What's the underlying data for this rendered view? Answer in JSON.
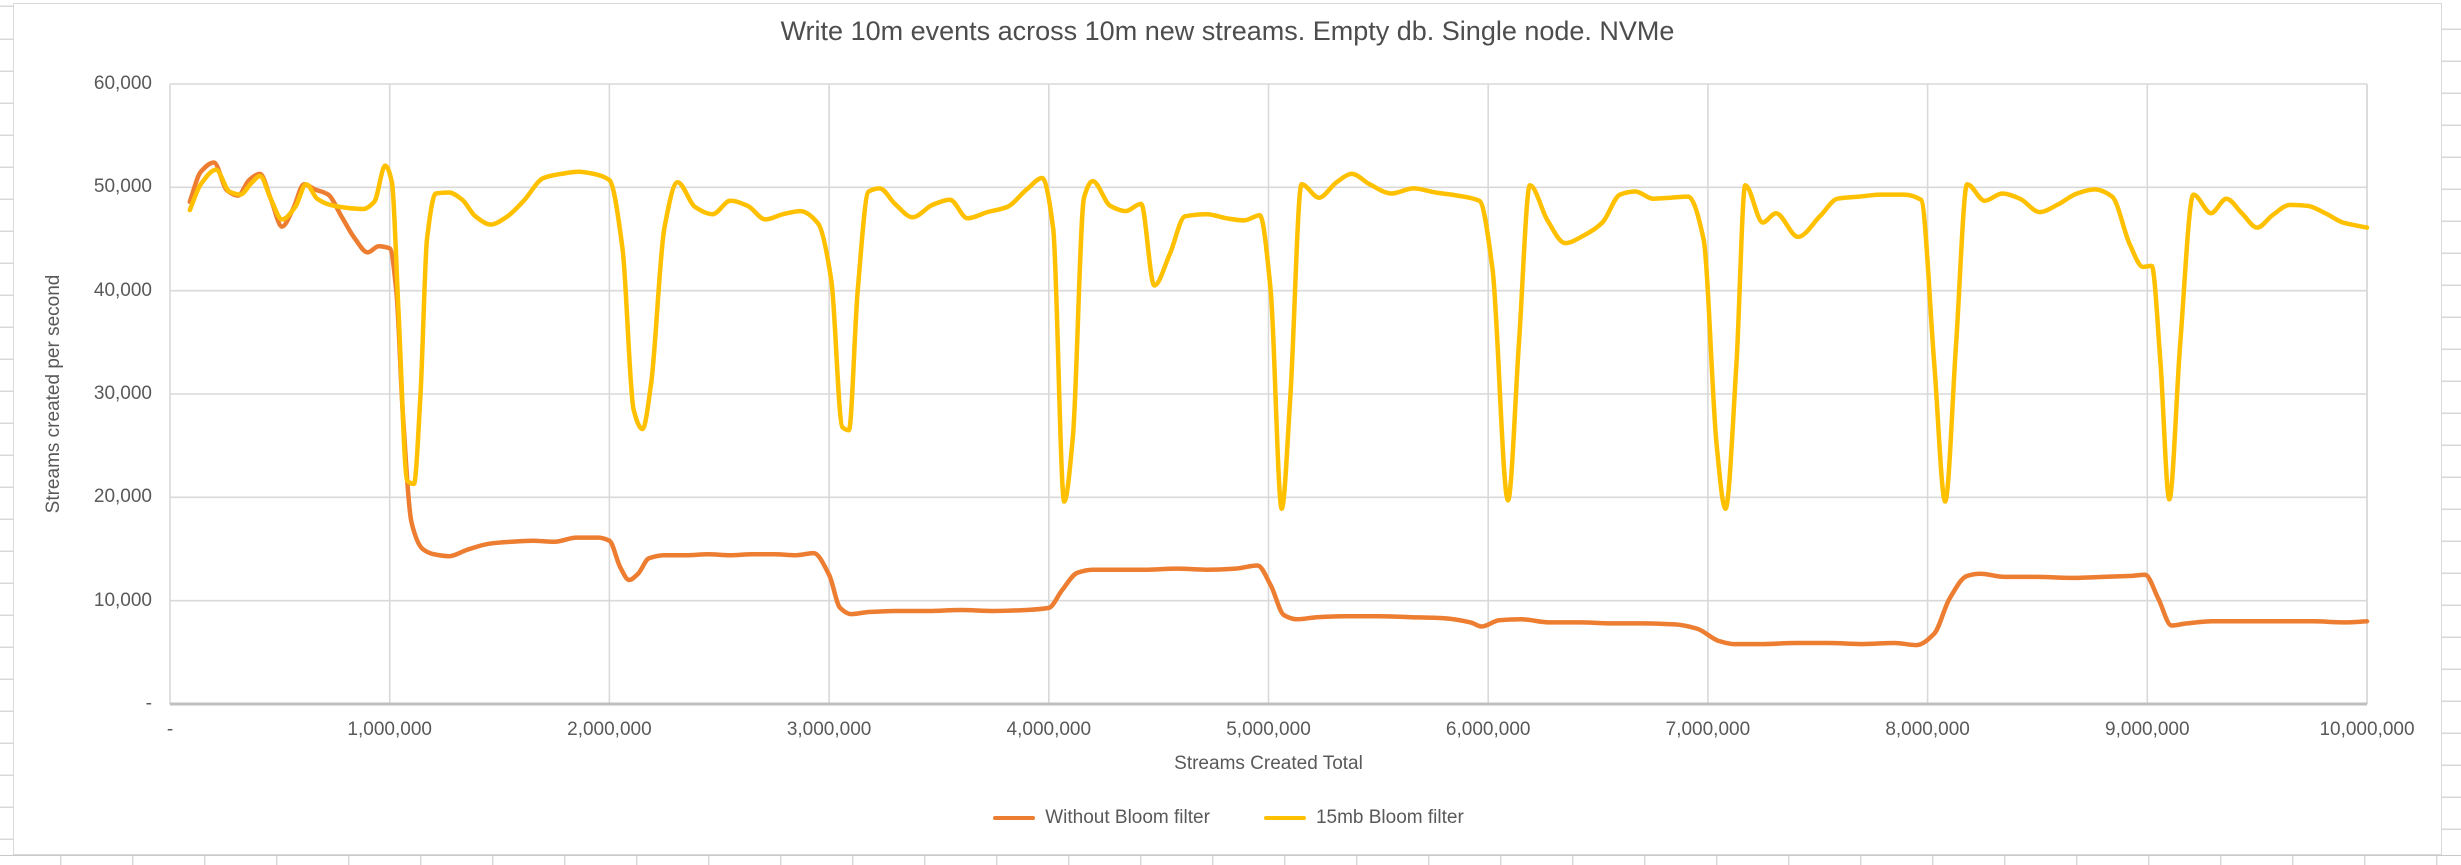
{
  "spreadsheet": {
    "gridline_color": "#d8d8d8",
    "visible_cells_text": ""
  },
  "chart_style": {
    "background": "#ffffff",
    "chart_border_color": "#d9d9d9",
    "gridline_color": "#d9d9d9",
    "axis_line_color": "#bfbfbf",
    "text_color": "#595959",
    "title_color": "#4d4d4d"
  },
  "chart_data": {
    "type": "line",
    "title": "Write 10m events across 10m new streams. Empty db. Single node. NVMe",
    "xlabel": "Streams Created Total",
    "ylabel": "Streams created per second",
    "xlim": [
      0,
      10000000
    ],
    "ylim": [
      0,
      60000
    ],
    "grid": true,
    "legend_position": "bottom",
    "x_unit_of_points": "millions of streams",
    "x_ticks": [
      {
        "label": "-",
        "value": 0
      },
      {
        "label": "1,000,000",
        "value": 1000000
      },
      {
        "label": "2,000,000",
        "value": 2000000
      },
      {
        "label": "3,000,000",
        "value": 3000000
      },
      {
        "label": "4,000,000",
        "value": 4000000
      },
      {
        "label": "5,000,000",
        "value": 5000000
      },
      {
        "label": "6,000,000",
        "value": 6000000
      },
      {
        "label": "7,000,000",
        "value": 7000000
      },
      {
        "label": "8,000,000",
        "value": 8000000
      },
      {
        "label": "9,000,000",
        "value": 9000000
      },
      {
        "label": "10,000,000",
        "value": 10000000
      }
    ],
    "y_ticks": [
      {
        "label": "-",
        "value": 0
      },
      {
        "label": "10,000",
        "value": 10000
      },
      {
        "label": "20,000",
        "value": 20000
      },
      {
        "label": "30,000",
        "value": 30000
      },
      {
        "label": "40,000",
        "value": 40000
      },
      {
        "label": "50,000",
        "value": 50000
      },
      {
        "label": "60,000",
        "value": 60000
      }
    ],
    "series": [
      {
        "name": "Without Bloom filter",
        "color": "#ED7D31",
        "points": [
          [
            0.09,
            48600
          ],
          [
            0.14,
            51500
          ],
          [
            0.2,
            52400
          ],
          [
            0.26,
            49700
          ],
          [
            0.31,
            49200
          ],
          [
            0.36,
            50700
          ],
          [
            0.41,
            51300
          ],
          [
            0.46,
            48800
          ],
          [
            0.51,
            46200
          ],
          [
            0.56,
            47900
          ],
          [
            0.61,
            50300
          ],
          [
            0.66,
            49800
          ],
          [
            0.72,
            49300
          ],
          [
            0.78,
            47200
          ],
          [
            0.84,
            45100
          ],
          [
            0.9,
            43700
          ],
          [
            0.95,
            44300
          ],
          [
            1.0,
            44100
          ],
          [
            1.03,
            40000
          ],
          [
            1.06,
            28000
          ],
          [
            1.1,
            17500
          ],
          [
            1.15,
            15000
          ],
          [
            1.2,
            14500
          ],
          [
            1.27,
            14300
          ],
          [
            1.35,
            14900
          ],
          [
            1.45,
            15500
          ],
          [
            1.55,
            15700
          ],
          [
            1.65,
            15800
          ],
          [
            1.75,
            15700
          ],
          [
            1.85,
            16100
          ],
          [
            1.95,
            16100
          ],
          [
            2.0,
            15800
          ],
          [
            2.05,
            13200
          ],
          [
            2.09,
            12000
          ],
          [
            2.13,
            12600
          ],
          [
            2.18,
            14100
          ],
          [
            2.25,
            14400
          ],
          [
            2.35,
            14400
          ],
          [
            2.45,
            14500
          ],
          [
            2.55,
            14400
          ],
          [
            2.65,
            14500
          ],
          [
            2.75,
            14500
          ],
          [
            2.85,
            14400
          ],
          [
            2.93,
            14600
          ],
          [
            3.0,
            12500
          ],
          [
            3.05,
            9300
          ],
          [
            3.1,
            8700
          ],
          [
            3.18,
            8900
          ],
          [
            3.3,
            9000
          ],
          [
            3.45,
            9000
          ],
          [
            3.6,
            9100
          ],
          [
            3.75,
            9000
          ],
          [
            3.9,
            9100
          ],
          [
            4.0,
            9300
          ],
          [
            4.06,
            11000
          ],
          [
            4.13,
            12700
          ],
          [
            4.2,
            13000
          ],
          [
            4.32,
            13000
          ],
          [
            4.45,
            13000
          ],
          [
            4.58,
            13100
          ],
          [
            4.72,
            13000
          ],
          [
            4.85,
            13100
          ],
          [
            4.95,
            13400
          ],
          [
            5.01,
            11500
          ],
          [
            5.07,
            8600
          ],
          [
            5.13,
            8200
          ],
          [
            5.22,
            8400
          ],
          [
            5.35,
            8500
          ],
          [
            5.5,
            8500
          ],
          [
            5.65,
            8400
          ],
          [
            5.8,
            8300
          ],
          [
            5.92,
            7900
          ],
          [
            5.97,
            7500
          ],
          [
            6.05,
            8100
          ],
          [
            6.15,
            8200
          ],
          [
            6.28,
            7900
          ],
          [
            6.42,
            7900
          ],
          [
            6.56,
            7800
          ],
          [
            6.7,
            7800
          ],
          [
            6.85,
            7700
          ],
          [
            6.95,
            7300
          ],
          [
            7.05,
            6100
          ],
          [
            7.12,
            5800
          ],
          [
            7.25,
            5800
          ],
          [
            7.4,
            5900
          ],
          [
            7.55,
            5900
          ],
          [
            7.7,
            5800
          ],
          [
            7.85,
            5900
          ],
          [
            7.95,
            5700
          ],
          [
            8.03,
            6800
          ],
          [
            8.1,
            10200
          ],
          [
            8.18,
            12400
          ],
          [
            8.24,
            12600
          ],
          [
            8.35,
            12300
          ],
          [
            8.5,
            12300
          ],
          [
            8.65,
            12200
          ],
          [
            8.8,
            12300
          ],
          [
            8.93,
            12400
          ],
          [
            8.99,
            12500
          ],
          [
            9.05,
            10200
          ],
          [
            9.11,
            7600
          ],
          [
            9.18,
            7800
          ],
          [
            9.3,
            8000
          ],
          [
            9.45,
            8000
          ],
          [
            9.6,
            8000
          ],
          [
            9.75,
            8000
          ],
          [
            9.9,
            7900
          ],
          [
            10.0,
            8000
          ]
        ]
      },
      {
        "name": "15mb Bloom filter",
        "color": "#FFC000",
        "points": [
          [
            0.09,
            47800
          ],
          [
            0.14,
            50300
          ],
          [
            0.21,
            51700
          ],
          [
            0.27,
            49600
          ],
          [
            0.32,
            49300
          ],
          [
            0.37,
            50400
          ],
          [
            0.41,
            51100
          ],
          [
            0.46,
            48800
          ],
          [
            0.51,
            46900
          ],
          [
            0.57,
            48100
          ],
          [
            0.62,
            50300
          ],
          [
            0.67,
            48900
          ],
          [
            0.73,
            48300
          ],
          [
            0.81,
            48000
          ],
          [
            0.88,
            47900
          ],
          [
            0.93,
            48600
          ],
          [
            0.98,
            52100
          ],
          [
            1.01,
            50500
          ],
          [
            1.04,
            38000
          ],
          [
            1.08,
            21600
          ],
          [
            1.11,
            21300
          ],
          [
            1.14,
            30000
          ],
          [
            1.17,
            45000
          ],
          [
            1.21,
            49400
          ],
          [
            1.27,
            49500
          ],
          [
            1.33,
            48800
          ],
          [
            1.39,
            47200
          ],
          [
            1.46,
            46400
          ],
          [
            1.53,
            47100
          ],
          [
            1.61,
            48700
          ],
          [
            1.7,
            50900
          ],
          [
            1.78,
            51300
          ],
          [
            1.86,
            51500
          ],
          [
            1.93,
            51300
          ],
          [
            2.0,
            50700
          ],
          [
            2.06,
            44000
          ],
          [
            2.11,
            28500
          ],
          [
            2.15,
            26600
          ],
          [
            2.19,
            31000
          ],
          [
            2.25,
            46000
          ],
          [
            2.31,
            50500
          ],
          [
            2.39,
            48100
          ],
          [
            2.47,
            47400
          ],
          [
            2.55,
            48700
          ],
          [
            2.63,
            48200
          ],
          [
            2.71,
            46900
          ],
          [
            2.79,
            47400
          ],
          [
            2.87,
            47700
          ],
          [
            2.95,
            46500
          ],
          [
            3.01,
            41000
          ],
          [
            3.06,
            26800
          ],
          [
            3.09,
            26500
          ],
          [
            3.13,
            40000
          ],
          [
            3.18,
            49600
          ],
          [
            3.23,
            49900
          ],
          [
            3.3,
            48400
          ],
          [
            3.38,
            47100
          ],
          [
            3.47,
            48300
          ],
          [
            3.55,
            48800
          ],
          [
            3.63,
            47000
          ],
          [
            3.72,
            47600
          ],
          [
            3.81,
            48100
          ],
          [
            3.9,
            49800
          ],
          [
            3.97,
            50900
          ],
          [
            4.02,
            46000
          ],
          [
            4.07,
            19600
          ],
          [
            4.11,
            26000
          ],
          [
            4.16,
            49000
          ],
          [
            4.2,
            50600
          ],
          [
            4.28,
            48200
          ],
          [
            4.35,
            47700
          ],
          [
            4.42,
            48400
          ],
          [
            4.48,
            40500
          ],
          [
            4.55,
            43500
          ],
          [
            4.62,
            47200
          ],
          [
            4.72,
            47400
          ],
          [
            4.81,
            47000
          ],
          [
            4.89,
            46800
          ],
          [
            4.96,
            47300
          ],
          [
            5.01,
            40000
          ],
          [
            5.06,
            18900
          ],
          [
            5.1,
            30000
          ],
          [
            5.15,
            50300
          ],
          [
            5.23,
            49000
          ],
          [
            5.31,
            50500
          ],
          [
            5.38,
            51300
          ],
          [
            5.46,
            50300
          ],
          [
            5.56,
            49400
          ],
          [
            5.66,
            49900
          ],
          [
            5.76,
            49500
          ],
          [
            5.86,
            49200
          ],
          [
            5.96,
            48700
          ],
          [
            6.02,
            42000
          ],
          [
            6.09,
            19700
          ],
          [
            6.14,
            35000
          ],
          [
            6.19,
            50200
          ],
          [
            6.27,
            46800
          ],
          [
            6.35,
            44600
          ],
          [
            6.44,
            45400
          ],
          [
            6.52,
            46600
          ],
          [
            6.6,
            49300
          ],
          [
            6.67,
            49600
          ],
          [
            6.75,
            48900
          ],
          [
            6.83,
            49000
          ],
          [
            6.91,
            49100
          ],
          [
            6.98,
            45000
          ],
          [
            7.04,
            25000
          ],
          [
            7.08,
            18900
          ],
          [
            7.13,
            33000
          ],
          [
            7.17,
            50200
          ],
          [
            7.25,
            46600
          ],
          [
            7.31,
            47500
          ],
          [
            7.41,
            45200
          ],
          [
            7.51,
            47200
          ],
          [
            7.59,
            48900
          ],
          [
            7.69,
            49100
          ],
          [
            7.79,
            49300
          ],
          [
            7.89,
            49300
          ],
          [
            7.97,
            48800
          ],
          [
            8.03,
            33000
          ],
          [
            8.08,
            19600
          ],
          [
            8.13,
            35000
          ],
          [
            8.18,
            50300
          ],
          [
            8.26,
            48700
          ],
          [
            8.34,
            49400
          ],
          [
            8.42,
            48900
          ],
          [
            8.51,
            47600
          ],
          [
            8.59,
            48300
          ],
          [
            8.68,
            49400
          ],
          [
            8.76,
            49800
          ],
          [
            8.84,
            49100
          ],
          [
            8.92,
            44500
          ],
          [
            8.98,
            42300
          ],
          [
            9.02,
            42400
          ],
          [
            9.06,
            33000
          ],
          [
            9.1,
            19800
          ],
          [
            9.15,
            35000
          ],
          [
            9.21,
            49300
          ],
          [
            9.29,
            47500
          ],
          [
            9.36,
            48900
          ],
          [
            9.43,
            47500
          ],
          [
            9.5,
            46100
          ],
          [
            9.57,
            47300
          ],
          [
            9.65,
            48300
          ],
          [
            9.73,
            48200
          ],
          [
            9.81,
            47500
          ],
          [
            9.89,
            46600
          ],
          [
            10.0,
            46100
          ]
        ]
      }
    ]
  }
}
